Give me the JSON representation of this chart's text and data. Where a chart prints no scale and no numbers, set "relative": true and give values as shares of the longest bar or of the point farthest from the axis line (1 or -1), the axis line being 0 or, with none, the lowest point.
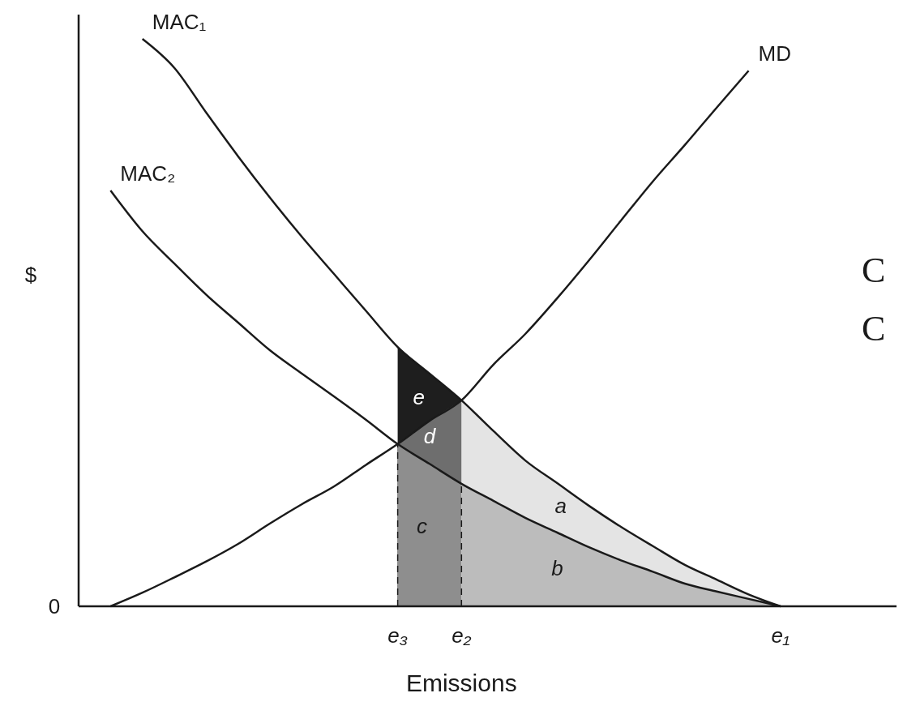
{
  "chart_data": {
    "type": "line",
    "relative": true,
    "xlabel": "Emissions",
    "ylabel": "$",
    "categories": [
      null,
      null,
      null,
      null,
      null,
      null,
      null,
      null,
      null,
      null,
      "e₃",
      null,
      "e₂",
      null,
      null,
      null,
      null,
      null,
      null,
      null,
      null,
      null,
      "e₁",
      null,
      null,
      null
    ],
    "annotations": [
      "0",
      "C",
      "C"
    ],
    "ref_lines": [
      {
        "axis": "x",
        "value": "e₃",
        "line_style": "dashed",
        "color": "#1a1a1a"
      },
      {
        "axis": "x",
        "value": "e₂",
        "line_style": "dashed",
        "color": "#1a1a1a"
      }
    ],
    "series": [
      {
        "name": "e",
        "type": "area",
        "color": "#1e1e1e",
        "values": [
          null,
          null,
          null,
          null,
          null,
          null,
          null,
          null,
          null,
          null,
          0.457,
          0.41,
          0.363,
          null,
          null,
          null,
          null,
          null,
          null,
          null,
          null,
          null,
          null,
          null,
          null,
          null
        ]
      },
      {
        "name": "d",
        "type": "area",
        "color": "#6e6e6e",
        "values": [
          null,
          null,
          null,
          null,
          null,
          null,
          null,
          null,
          null,
          null,
          0.286,
          0.327,
          0.363,
          null,
          null,
          null,
          null,
          null,
          null,
          null,
          null,
          null,
          null,
          null,
          null,
          null
        ]
      },
      {
        "name": "c",
        "type": "area",
        "color": "#8e8e8e",
        "values": [
          null,
          null,
          null,
          null,
          null,
          null,
          null,
          null,
          null,
          null,
          0.286,
          0.251,
          0.216,
          null,
          null,
          null,
          null,
          null,
          null,
          null,
          null,
          null,
          null,
          null,
          null,
          null
        ]
      },
      {
        "name": "a",
        "type": "area",
        "color": "#e4e4e4",
        "values": [
          null,
          null,
          null,
          null,
          null,
          null,
          null,
          null,
          null,
          null,
          null,
          null,
          0.363,
          0.309,
          0.257,
          0.217,
          0.177,
          0.14,
          0.106,
          0.073,
          0.047,
          0.021,
          0,
          null,
          null,
          null
        ]
      },
      {
        "name": "b",
        "type": "area",
        "color": "#bcbcbc",
        "values": [
          null,
          null,
          null,
          null,
          null,
          null,
          null,
          null,
          null,
          null,
          null,
          null,
          0.216,
          0.186,
          0.156,
          0.13,
          0.104,
          0.081,
          0.061,
          0.04,
          0.026,
          0.013,
          0,
          null,
          null,
          null
        ]
      },
      {
        "name": "MAC₁",
        "color": "#1a1a1a",
        "values": [
          null,
          null,
          1,
          0.949,
          0.87,
          0.793,
          0.72,
          0.651,
          0.586,
          0.521,
          0.457,
          0.41,
          0.363,
          0.309,
          0.257,
          0.217,
          0.177,
          0.14,
          0.106,
          0.073,
          0.047,
          0.021,
          0,
          null,
          null,
          null
        ]
      },
      {
        "name": "MAC₂",
        "color": "#1a1a1a",
        "values": [
          null,
          0.733,
          0.661,
          0.604,
          0.549,
          0.5,
          0.451,
          0.41,
          0.37,
          0.329,
          0.286,
          0.251,
          0.216,
          0.186,
          0.156,
          0.13,
          0.104,
          0.081,
          0.061,
          0.04,
          0.026,
          0.013,
          0,
          null,
          null,
          null
        ]
      },
      {
        "name": "MD",
        "color": "#1a1a1a",
        "values": [
          null,
          0,
          0.024,
          0.051,
          0.079,
          0.11,
          0.146,
          0.18,
          0.211,
          0.249,
          0.286,
          0.327,
          0.363,
          0.426,
          0.48,
          0.543,
          0.61,
          0.68,
          0.749,
          0.813,
          0.879,
          0.944,
          null,
          null,
          null,
          null
        ]
      }
    ]
  }
}
